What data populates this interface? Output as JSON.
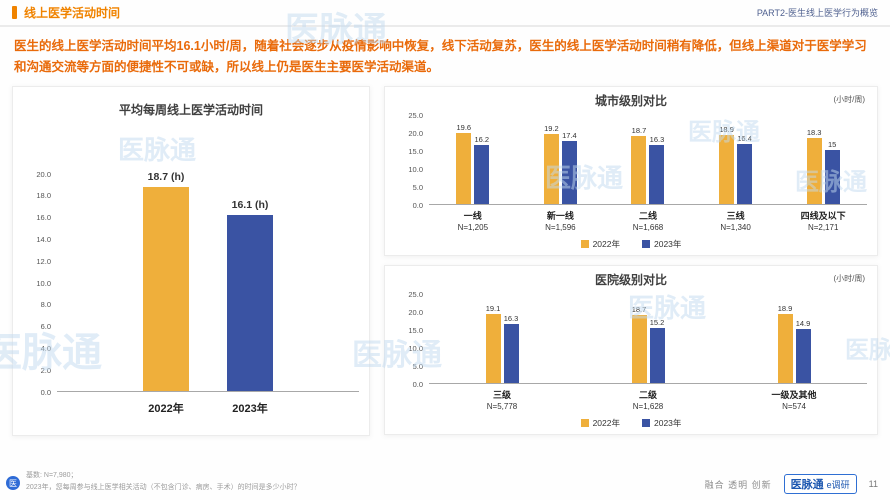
{
  "header": {
    "title": "线上医学活动时间",
    "section": "PART2-医生线上医学行为概览"
  },
  "intro": "医生的线上医学活动时间平均16.1小时/周，随着社会逐步从疫情影响中恢复，线下活动复苏，医生的线上医学活动时间稍有降低，但线上渠道对于医学学习和沟通交流等方面的便捷性不可或缺，所以线上仍是医生主要医学活动渠道。",
  "colors": {
    "gold": "#EFAF3B",
    "blue": "#3A53A3",
    "accent": "#F08300"
  },
  "legend": {
    "y2022": "2022年",
    "y2023": "2023年"
  },
  "chart_data": [
    {
      "type": "bar",
      "title": "平均每周线上医学活动时间",
      "categories": [
        "2022年",
        "2023年"
      ],
      "values": [
        18.7,
        16.1
      ],
      "value_labels": [
        "18.7 (h)",
        "16.1 (h)"
      ],
      "colors": [
        "#EFAF3B",
        "#3A53A3"
      ],
      "ylim": [
        0,
        20
      ],
      "ytick_step": 2,
      "grid": "off"
    },
    {
      "type": "grouped_bar",
      "title": "城市级别对比",
      "unit": "(小时/周)",
      "categories": [
        "一线",
        "新一线",
        "二线",
        "三线",
        "四线及以下"
      ],
      "ns": [
        "N=1,205",
        "N=1,596",
        "N=1,668",
        "N=1,340",
        "N=2,171"
      ],
      "series": [
        {
          "name": "2022年",
          "color": "#EFAF3B",
          "values": [
            19.6,
            19.2,
            18.7,
            18.9,
            18.3
          ]
        },
        {
          "name": "2023年",
          "color": "#3A53A3",
          "values": [
            16.2,
            17.4,
            16.3,
            16.4,
            15
          ]
        }
      ],
      "ylim": [
        0,
        25
      ],
      "ytick_step": 5,
      "legend_position": "bottom",
      "grid": "off"
    },
    {
      "type": "grouped_bar",
      "title": "医院级别对比",
      "unit": "(小时/周)",
      "categories": [
        "三级",
        "二级",
        "一级及其他"
      ],
      "ns": [
        "N=5,778",
        "N=1,628",
        "N=574"
      ],
      "series": [
        {
          "name": "2022年",
          "color": "#EFAF3B",
          "values": [
            19.1,
            18.7,
            18.9
          ]
        },
        {
          "name": "2023年",
          "color": "#3A53A3",
          "values": [
            16.3,
            15.2,
            14.9
          ]
        }
      ],
      "ylim": [
        0,
        25
      ],
      "ytick_step": 5,
      "legend_position": "bottom",
      "grid": "off"
    }
  ],
  "footer": {
    "base": "基数: N=7,980；",
    "question": "2023年，您每周参与线上医学相关活动（不包含门诊、病房、手术）的时间是多少小时？",
    "slogan": "融合 透明 创新",
    "logo_main": "医脉通",
    "logo_sub": "e调研",
    "page": "11",
    "mini_logo": "医"
  },
  "watermark": {
    "text": "医脉通"
  }
}
